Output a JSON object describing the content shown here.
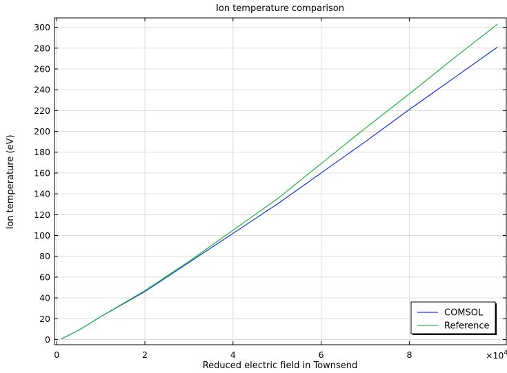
{
  "chart_data": {
    "type": "line",
    "title": "Ion temperature comparison",
    "xlabel": "Reduced electric field in Townsend",
    "ylabel": "Ion temperature (eV)",
    "x_multiplier_label": "×10",
    "x_multiplier_exponent": "4",
    "xlim": [
      -0.05,
      10.2
    ],
    "ylim": [
      -5,
      309
    ],
    "x_ticks": [
      0,
      2,
      4,
      6,
      8
    ],
    "x_tick_labels": [
      "0",
      "2",
      "4",
      "6",
      "8"
    ],
    "y_ticks": [
      0,
      20,
      40,
      60,
      80,
      100,
      120,
      140,
      160,
      180,
      200,
      220,
      240,
      260,
      280,
      300
    ],
    "y_tick_labels": [
      "0",
      "20",
      "40",
      "60",
      "80",
      "100",
      "120",
      "140",
      "160",
      "180",
      "200",
      "220",
      "240",
      "260",
      "280",
      "300"
    ],
    "grid": true,
    "legend_position": "bottom-right",
    "series": [
      {
        "name": "COMSOL",
        "color": "#1f3fdc",
        "x": [
          0.1,
          0.5,
          1,
          2,
          3,
          4,
          5,
          6,
          7,
          8,
          9,
          10
        ],
        "y": [
          0.5,
          9,
          22,
          46,
          74,
          102,
          130,
          160,
          190,
          221,
          251,
          281
        ]
      },
      {
        "name": "Reference",
        "color": "#2db84a",
        "x": [
          0.1,
          0.5,
          1,
          2,
          3,
          4,
          5,
          6,
          7,
          8,
          9,
          10
        ],
        "y": [
          0.5,
          9,
          22,
          47,
          75,
          105,
          135,
          169,
          203,
          236,
          270,
          303
        ]
      }
    ]
  }
}
